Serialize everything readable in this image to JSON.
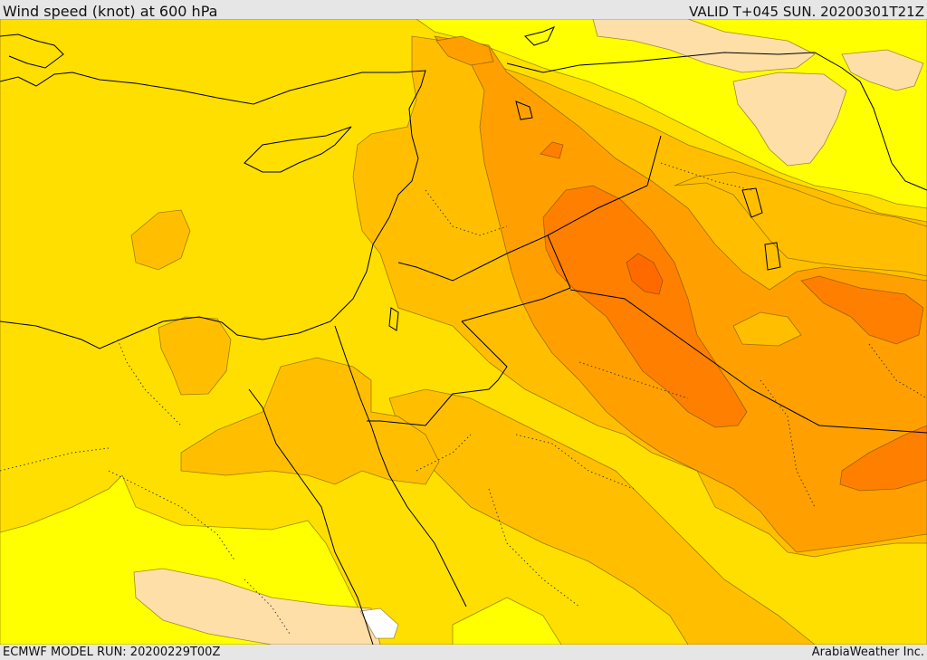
{
  "header": {
    "title": "Wind speed (knot) at 600 hPa",
    "valid": "VALID T+045 SUN. 20200301T21Z"
  },
  "footer": {
    "model_run": "ECMWF MODEL RUN: 20200229T00Z",
    "credit": "ArabiaWeather Inc."
  },
  "palette": {
    "very_low": "#ffdfa8",
    "low": "#ffff00",
    "medium": "#ffdf00",
    "medium_high": "#ffbf00",
    "high": "#ffa000",
    "very_high": "#ff7f00",
    "water": "#ffffff",
    "border": "#000000"
  }
}
